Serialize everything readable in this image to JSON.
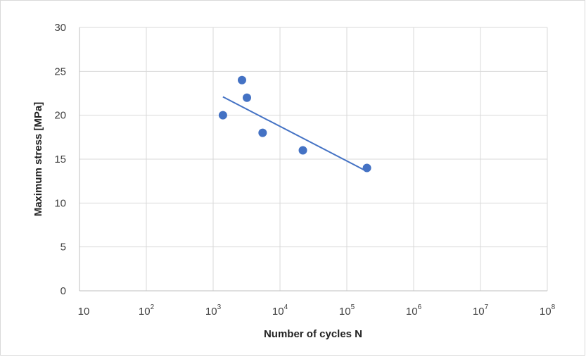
{
  "chart_data": {
    "type": "scatter",
    "xlabel": "Number of cycles N",
    "ylabel": "Maximum stress [MPa]",
    "x_scale": "log",
    "xlim": [
      10,
      100000000
    ],
    "ylim": [
      0,
      30
    ],
    "x_ticks": [
      {
        "value": 10,
        "base": "10",
        "exp": ""
      },
      {
        "value": 100,
        "base": "10",
        "exp": "2"
      },
      {
        "value": 1000,
        "base": "10",
        "exp": "3"
      },
      {
        "value": 10000,
        "base": "10",
        "exp": "4"
      },
      {
        "value": 100000,
        "base": "10",
        "exp": "5"
      },
      {
        "value": 1000000,
        "base": "10",
        "exp": "6"
      },
      {
        "value": 10000000,
        "base": "10",
        "exp": "7"
      },
      {
        "value": 100000000,
        "base": "10",
        "exp": "8"
      }
    ],
    "y_ticks": [
      "0",
      "5",
      "10",
      "15",
      "20",
      "25",
      "30"
    ],
    "grid": true,
    "series": [
      {
        "color": "#4472c4",
        "points": [
          {
            "x": 1400,
            "y": 20
          },
          {
            "x": 2700,
            "y": 24
          },
          {
            "x": 3200,
            "y": 22
          },
          {
            "x": 5500,
            "y": 18
          },
          {
            "x": 22000,
            "y": 16
          },
          {
            "x": 200000,
            "y": 14
          }
        ]
      }
    ],
    "trendline": {
      "type": "logarithmic",
      "color": "#4472c4",
      "x_start": 1400,
      "x_end": 200000,
      "y_start": 22.1,
      "y_end": 13.6
    }
  }
}
